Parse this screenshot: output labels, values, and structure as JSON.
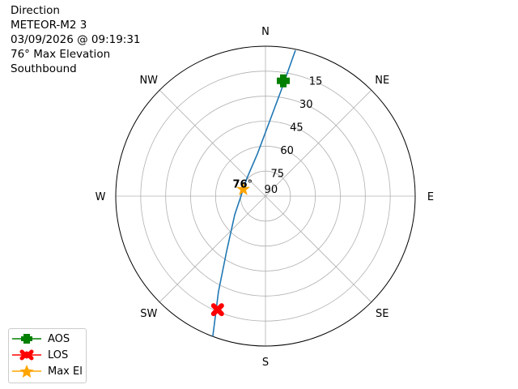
{
  "title": {
    "lines": [
      "Direction",
      "METEOR-M2 3",
      "03/09/2026 @ 09:19:31",
      "76° Max Elevation",
      "Southbound"
    ]
  },
  "chart_data": {
    "type": "polar",
    "theta_direction": "clockwise",
    "theta_zero": "N",
    "compass_labels": [
      "N",
      "NE",
      "E",
      "SE",
      "S",
      "SW",
      "W",
      "NW"
    ],
    "radial_axis": "elevation (deg), 90 at center, 0 at edge",
    "rlim": [
      90,
      0
    ],
    "radial_ticks": [
      15,
      30,
      45,
      60,
      75,
      90
    ],
    "radial_tick_labels": [
      "15",
      "30",
      "45",
      "60",
      "75",
      "90"
    ],
    "grid": true,
    "track": {
      "color": "#1f77b4",
      "points": [
        {
          "az": 11.6,
          "el": 0.6
        },
        {
          "az": 8.6,
          "el": 25.1
        },
        {
          "az": 3.1,
          "el": 45.2
        },
        {
          "az": 349.1,
          "el": 64.2
        },
        {
          "az": 313.7,
          "el": 74.5
        },
        {
          "az": 287,
          "el": 76
        },
        {
          "az": 238.8,
          "el": 68.4
        },
        {
          "az": 215.2,
          "el": 49.5
        },
        {
          "az": 206.2,
          "el": 26
        },
        {
          "az": 200.6,
          "el": 0
        }
      ]
    },
    "markers": [
      {
        "name": "AOS",
        "az": 8.8,
        "el": 20,
        "color": "#008000",
        "shape": "plus"
      },
      {
        "name": "LOS",
        "az": 202.9,
        "el": 16,
        "color": "#ff0000",
        "shape": "x"
      },
      {
        "name": "Max El",
        "az": 287,
        "el": 76,
        "color": "#ffa500",
        "shape": "star"
      }
    ],
    "annotation": {
      "text": "76°",
      "az": 287,
      "el": 76
    },
    "legend_placement": "lower-left"
  }
}
